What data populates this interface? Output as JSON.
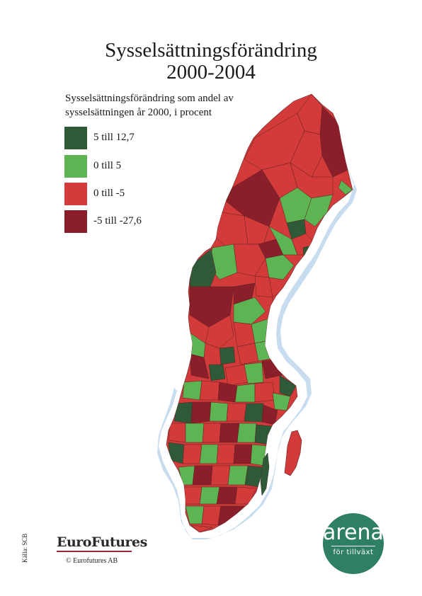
{
  "title": {
    "line1": "Sysselsättningsförändring",
    "line2": "2000-2004"
  },
  "subtitle": {
    "line1": "Sysselsättningsförändring som andel av",
    "line2": "sysselsättningen år 2000, i procent"
  },
  "legend": [
    {
      "label": "5 till 12,7",
      "color": "#2f5a37"
    },
    {
      "label": "0 till 5",
      "color": "#5cb452"
    },
    {
      "label": "0 till -5",
      "color": "#d33b3b"
    },
    {
      "label": "-5 till -27,6",
      "color": "#8a1f2b"
    }
  ],
  "map": {
    "water_color": "#c8dcf0",
    "land_colors": [
      "#2f5a37",
      "#5cb452",
      "#d33b3b",
      "#8a1f2b"
    ]
  },
  "source": "Källa: SCB",
  "eurofutures": {
    "logo": "EuroFutures",
    "copyright": "© Eurofutures AB"
  },
  "arena": {
    "word": "arena",
    "tagline": "för tillväxt",
    "color": "#2e7f63"
  }
}
